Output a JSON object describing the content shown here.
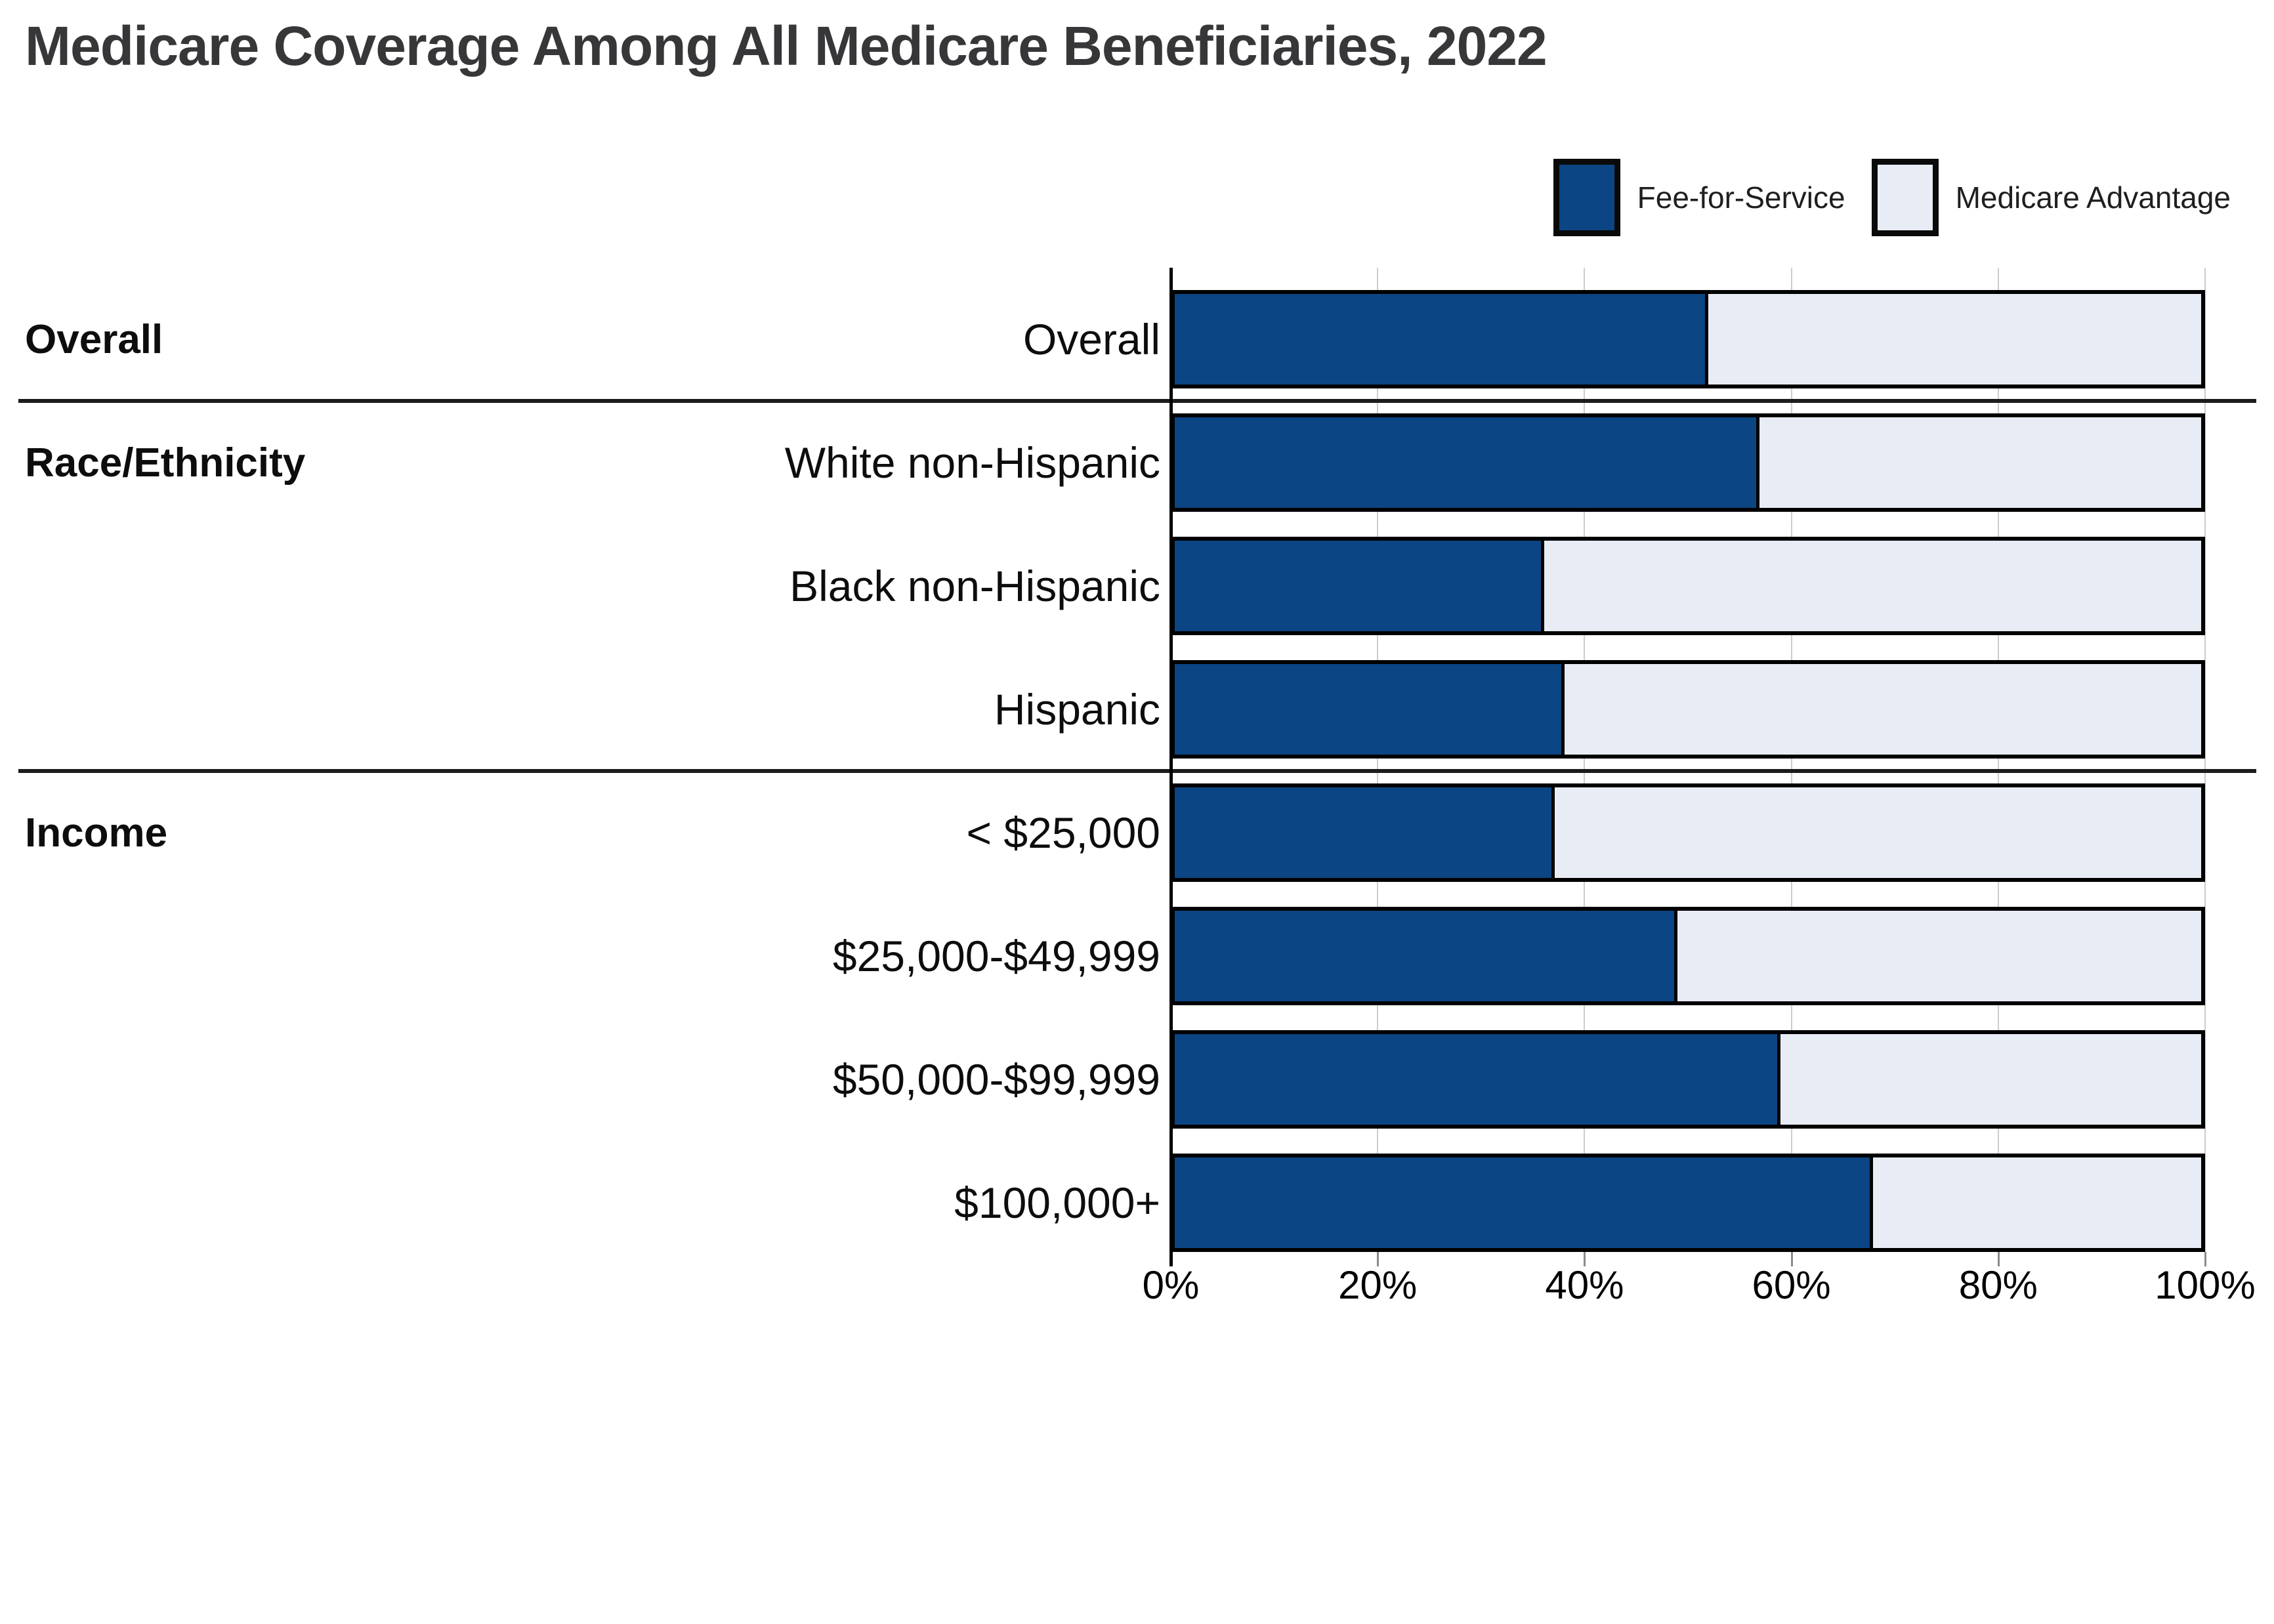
{
  "title": "Medicare Coverage Among All Medicare Beneficiaries, 2022",
  "colors": {
    "fee_for_service": "#0c4583",
    "medicare_advantage": "#e8ecf4",
    "bar_border": "#000000",
    "gridline": "#cccccc",
    "title_text": "#37373a"
  },
  "legend": {
    "items": [
      {
        "label": "Fee-for-Service",
        "color": "#0c4583"
      },
      {
        "label": "Medicare Advantage",
        "color": "#e8ecf4"
      }
    ]
  },
  "chart_data": {
    "type": "bar",
    "orientation": "horizontal",
    "stacked": true,
    "title": "Medicare Coverage Among All Medicare Beneficiaries, 2022",
    "xlim": [
      0,
      100
    ],
    "x_tick_labels": [
      "0%",
      "20%",
      "40%",
      "60%",
      "80%",
      "100%"
    ],
    "grid": true,
    "legend_position": "top-right",
    "categories": [
      "Overall",
      "White non-Hispanic",
      "Black non-Hispanic",
      "Hispanic",
      "< $25,000",
      "$25,000-$49,999",
      "$50,000-$99,999",
      "$100,000+"
    ],
    "row_groups": [
      {
        "label": "Overall",
        "rows": [
          0
        ]
      },
      {
        "label": "Race/Ethnicity",
        "rows": [
          1,
          2,
          3
        ]
      },
      {
        "label": "Income",
        "rows": [
          4,
          5,
          6,
          7
        ]
      }
    ],
    "series": [
      {
        "name": "Fee-for-Service",
        "values": [
          52,
          57,
          36,
          38,
          37,
          49,
          59,
          68
        ]
      },
      {
        "name": "Medicare Advantage",
        "values": [
          48,
          43,
          64,
          62,
          63,
          51,
          41,
          32
        ]
      }
    ]
  }
}
